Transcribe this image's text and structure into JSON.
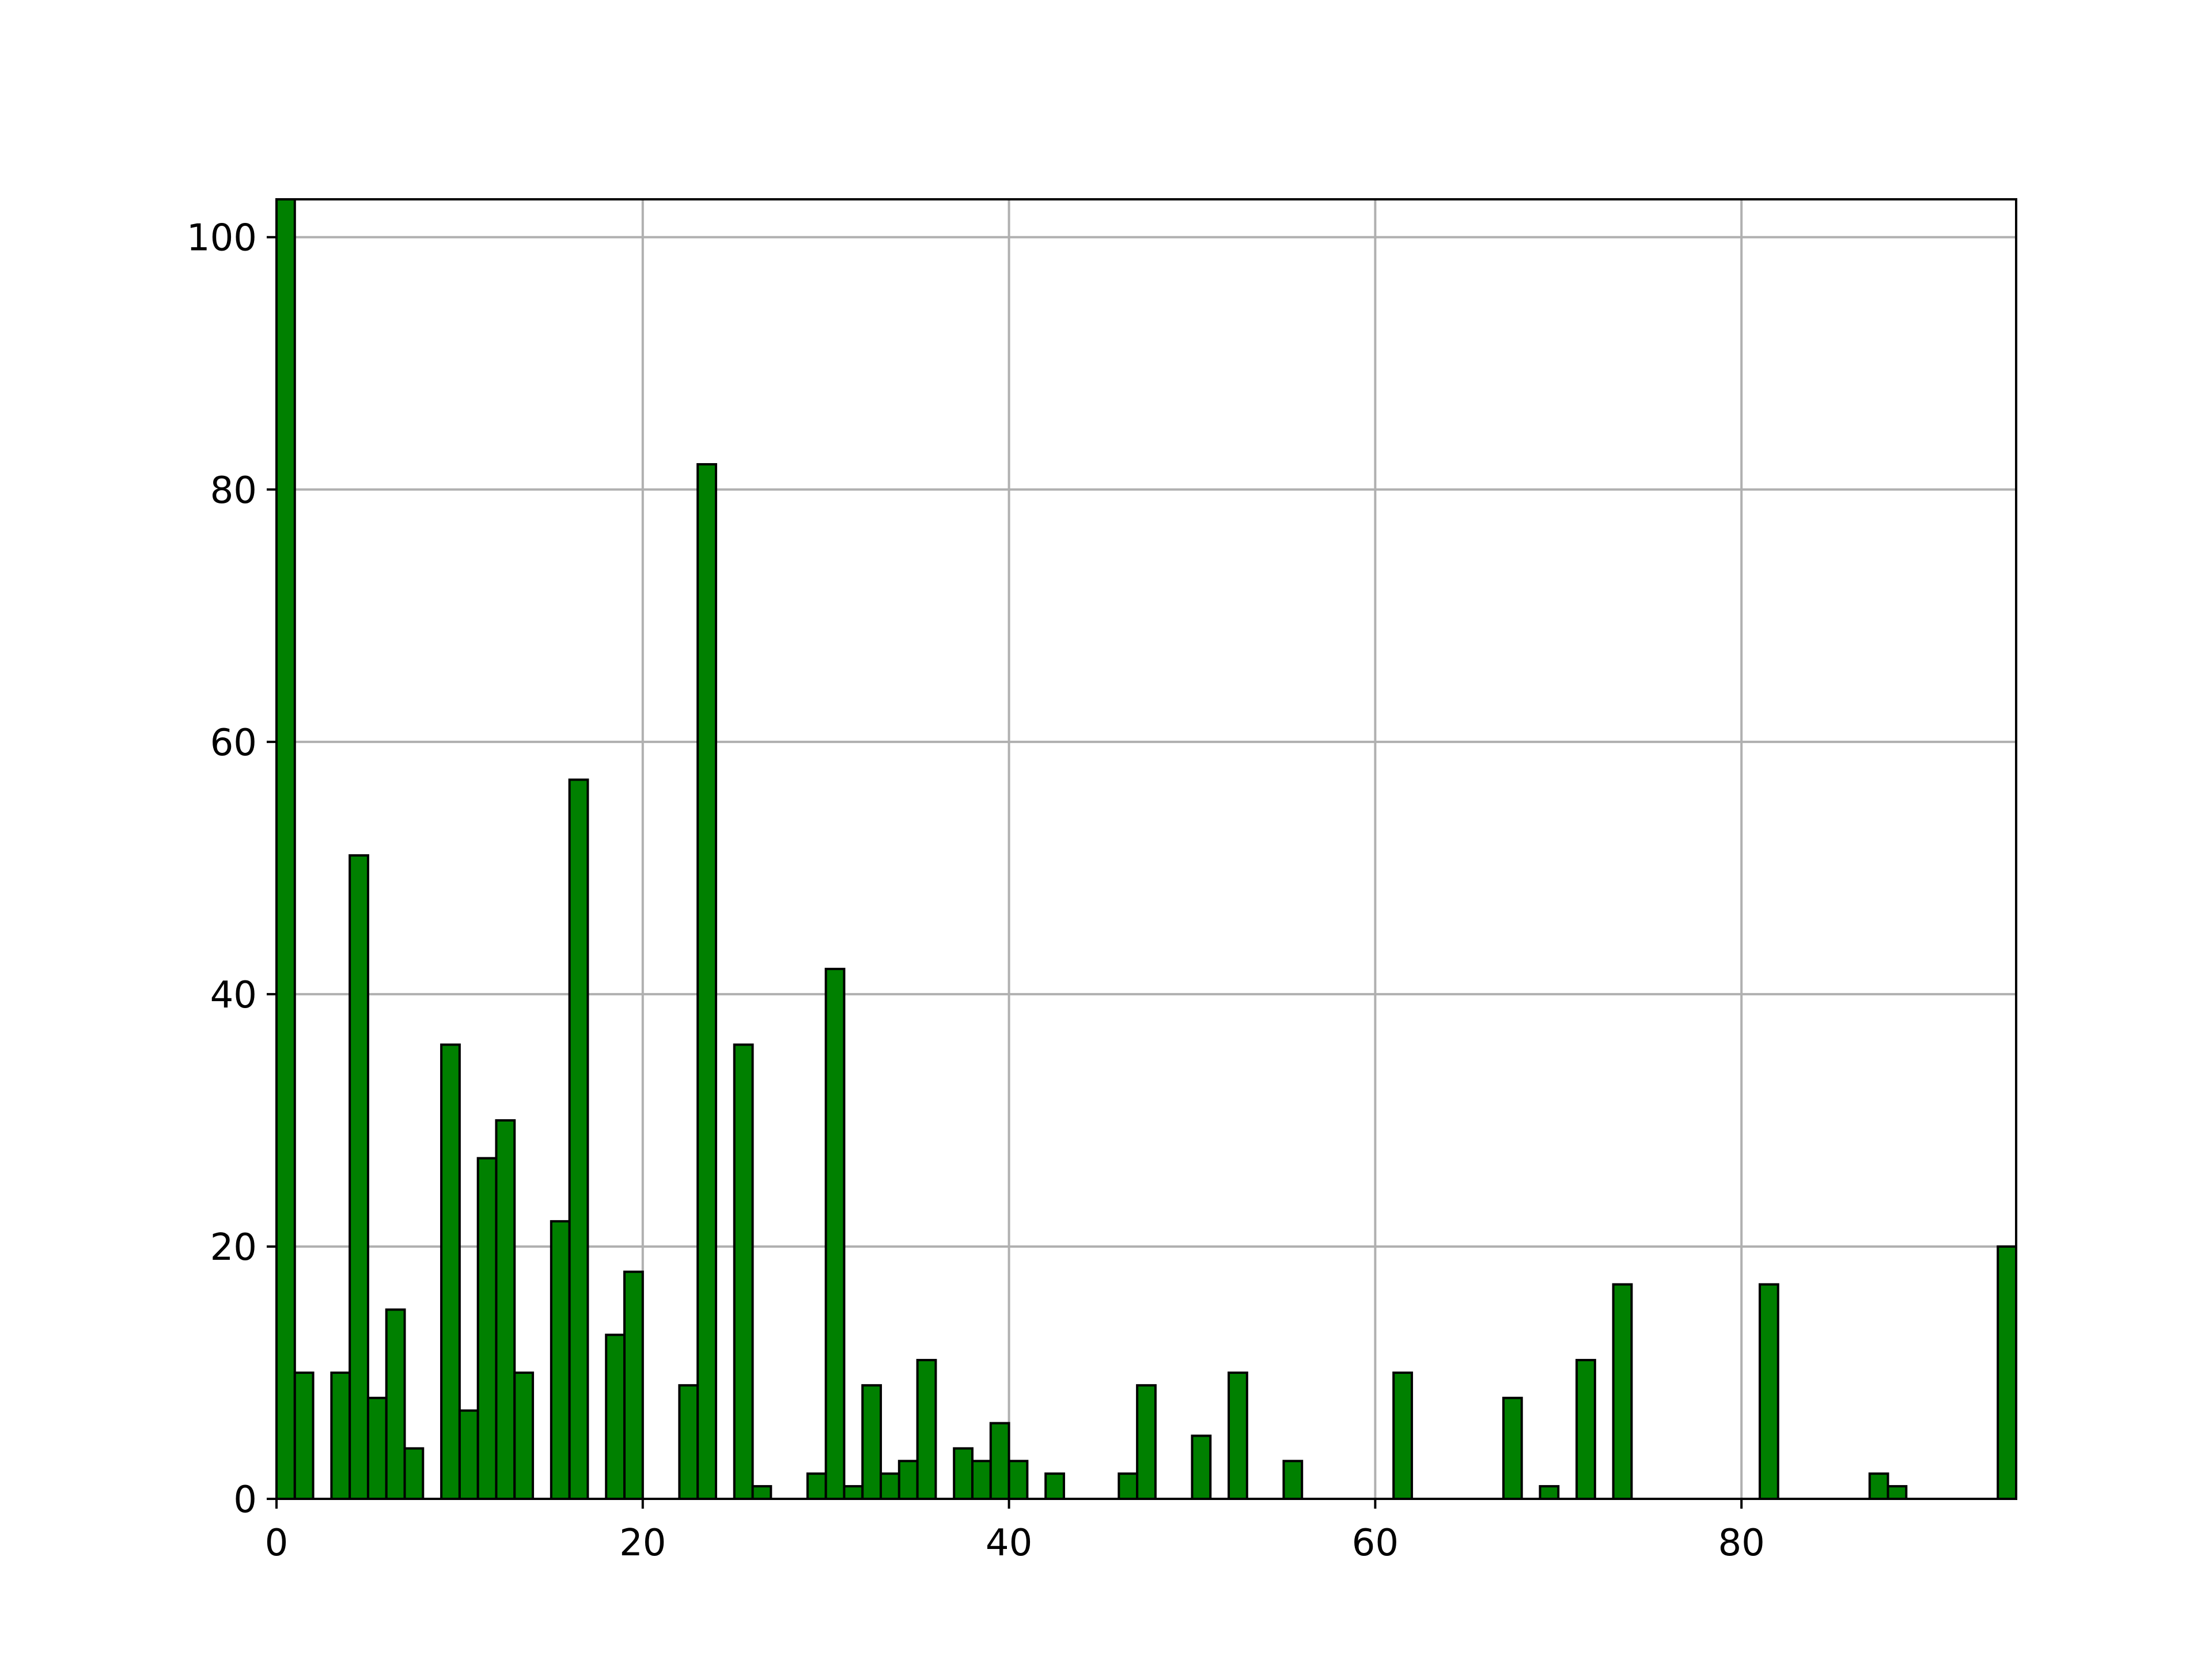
{
  "chart_data": {
    "type": "bar",
    "title": "",
    "xlabel": "",
    "ylabel": "",
    "xlim": [
      0,
      95
    ],
    "ylim": [
      0,
      103
    ],
    "grid": true,
    "bin_width": 1,
    "x_ticks": [
      0,
      20,
      40,
      60,
      80
    ],
    "y_ticks": [
      0,
      20,
      40,
      60,
      80,
      100
    ],
    "x_tick_labels": [
      "0",
      "20",
      "40",
      "60",
      "80"
    ],
    "y_tick_labels": [
      "0",
      "20",
      "40",
      "60",
      "80",
      "100"
    ],
    "bin_starts": [
      0,
      1,
      3,
      4,
      5,
      6,
      7,
      9,
      10,
      11,
      12,
      13,
      15,
      16,
      18,
      19,
      22,
      23,
      25,
      26,
      29,
      30,
      31,
      32,
      33,
      34,
      35,
      37,
      38,
      39,
      40,
      42,
      46,
      47,
      50,
      52,
      55,
      61,
      67,
      69,
      71,
      73,
      81,
      87,
      88,
      94
    ],
    "values": [
      103,
      10,
      10,
      51,
      8,
      15,
      4,
      36,
      7,
      27,
      30,
      10,
      22,
      57,
      13,
      18,
      9,
      82,
      36,
      1,
      2,
      42,
      1,
      9,
      2,
      3,
      11,
      4,
      3,
      6,
      3,
      2,
      2,
      9,
      5,
      10,
      3,
      10,
      8,
      1,
      11,
      17,
      17,
      2,
      1,
      20
    ],
    "colors": {
      "bar_fill": "#008000",
      "bar_edge": "#000000",
      "grid": "#b0b0b0",
      "axes": "#000000"
    }
  }
}
